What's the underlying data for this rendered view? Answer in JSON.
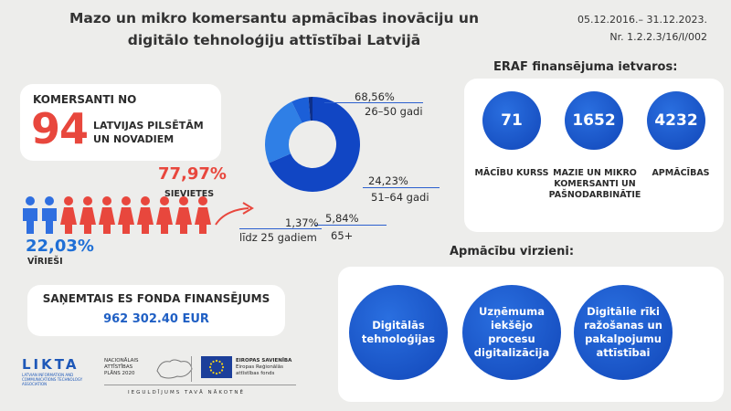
{
  "header": {
    "title_line1": "Mazo un mikro komersantu apmācības inovāciju un",
    "title_line2": "digitālo tehnoloģiju attīstībai Latvijā",
    "period": "05.12.2016.– 31.12.2023.",
    "project_no": "Nr. 1.2.2.3/16/I/002"
  },
  "komersanti": {
    "label": "KOMERSANTI NO",
    "number": "94",
    "sub_line1": "LATVIJAS PILSĒTĀM",
    "sub_line2": "UN NOVADIEM"
  },
  "gender": {
    "female_pct": "77,97%",
    "female_label": "SIEVIETES",
    "female_share": 0.7797,
    "male_pct": "22,03%",
    "male_label": "VĪRIEŠI",
    "male_share": 0.2203,
    "female_color": "#e8473d",
    "male_color": "#2f6fe0"
  },
  "age_groups": [
    {
      "pct": "68,56%",
      "label": "26–50 gadi",
      "share": 68.56,
      "color": "#1146c4"
    },
    {
      "pct": "24,23%",
      "label": "51–64 gadi",
      "share": 24.23,
      "color": "#2f7fe6"
    },
    {
      "pct": "5,84%",
      "label": "65+",
      "share": 5.84,
      "color": "#1b5fd8"
    },
    {
      "pct": "1,37%",
      "label": "līdz 25 gadiem",
      "share": 1.37,
      "color": "#0d2f8a"
    }
  ],
  "funding": {
    "label": "SAŅEMTAIS ES FONDA FINANSĒJUMS",
    "value": "962 302.40 EUR"
  },
  "eraf": {
    "title": "ERAF finansējuma ietvaros:",
    "items": [
      {
        "number": "71",
        "caption": "MĀCĪBU KURSS"
      },
      {
        "number": "1652",
        "caption": "MAZIE UN MIKRO KOMERSANTI UN PAŠNODARBINĀTIE"
      },
      {
        "number": "4232",
        "caption": "APMĀCĪBAS"
      }
    ]
  },
  "directions": {
    "title": "Apmācību virzieni:",
    "items": [
      "Digitālās tehnoloģijas",
      "Uzņēmuma iekšējo procesu digitalizācija",
      "Digitālie rīki ražošanas un pakalpojumu attīstībai"
    ]
  },
  "footer": {
    "likta": "LIKTA",
    "likta_sub": "LATVIAN INFORMATION AND COMMUNICATIONS TECHNOLOGY ASSOCIATION",
    "nap_line1": "NACIONĀLAIS",
    "nap_line2": "ATTĪSTĪBAS",
    "nap_line3": "PLĀNS 2020",
    "eu_line1": "EIROPAS SAVIENĪBA",
    "eu_line2": "Eiropas Reģionālās",
    "eu_line3": "attīstības fonds",
    "motto": "IEGULDĪJUMS TAVĀ NĀKOTNĒ"
  }
}
